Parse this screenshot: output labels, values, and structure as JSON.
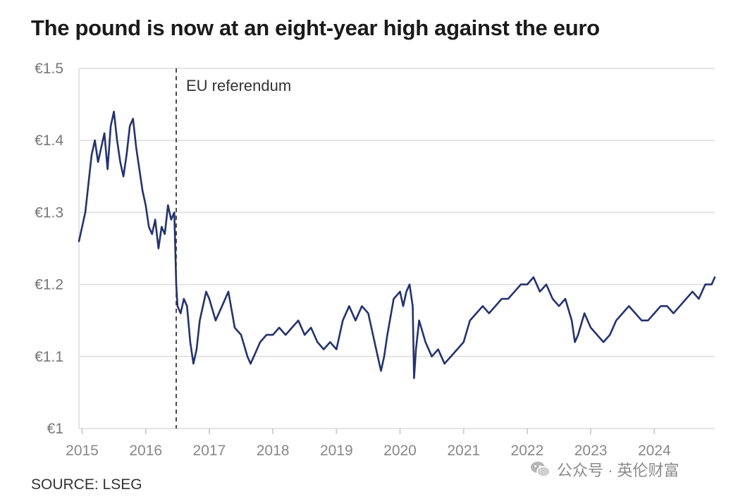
{
  "chart_data": {
    "type": "line",
    "title": "The pound is now at an eight-year high against the euro",
    "xlabel": "",
    "ylabel": "",
    "xlim": [
      2014.95,
      2024.95
    ],
    "ylim": [
      1.0,
      1.5
    ],
    "y_ticks": [
      {
        "value": 1.5,
        "label": "€1.5"
      },
      {
        "value": 1.4,
        "label": "€1.4"
      },
      {
        "value": 1.3,
        "label": "€1.3"
      },
      {
        "value": 1.2,
        "label": "€1.2"
      },
      {
        "value": 1.1,
        "label": "€1.1"
      },
      {
        "value": 1.0,
        "label": "€1"
      }
    ],
    "x_ticks": [
      {
        "value": 2015,
        "label": "2015"
      },
      {
        "value": 2016,
        "label": "2016"
      },
      {
        "value": 2017,
        "label": "2017"
      },
      {
        "value": 2018,
        "label": "2018"
      },
      {
        "value": 2019,
        "label": "2019"
      },
      {
        "value": 2020,
        "label": "2020"
      },
      {
        "value": 2021,
        "label": "2021"
      },
      {
        "value": 2022,
        "label": "2022"
      },
      {
        "value": 2023,
        "label": "2023"
      },
      {
        "value": 2024,
        "label": "2024"
      }
    ],
    "grid": true,
    "series_color": "#23336e",
    "annotation": {
      "x": 2016.48,
      "label": "EU referendum"
    },
    "series": [
      {
        "x": [
          2014.95,
          2015.0,
          2015.05,
          2015.1,
          2015.15,
          2015.2,
          2015.25,
          2015.3,
          2015.35,
          2015.4,
          2015.45,
          2015.5,
          2015.55,
          2015.6,
          2015.65,
          2015.7,
          2015.75,
          2015.8,
          2015.85,
          2015.9,
          2015.95,
          2016.0,
          2016.05,
          2016.1,
          2016.15,
          2016.2,
          2016.25,
          2016.3,
          2016.35,
          2016.4,
          2016.45,
          2016.48,
          2016.5,
          2016.55,
          2016.6,
          2016.65,
          2016.7,
          2016.75,
          2016.8,
          2016.85,
          2016.9,
          2016.95,
          2017.0,
          2017.1,
          2017.2,
          2017.3,
          2017.4,
          2017.5,
          2017.6,
          2017.65,
          2017.7,
          2017.8,
          2017.9,
          2018.0,
          2018.1,
          2018.2,
          2018.3,
          2018.4,
          2018.5,
          2018.6,
          2018.7,
          2018.8,
          2018.9,
          2019.0,
          2019.1,
          2019.2,
          2019.3,
          2019.4,
          2019.5,
          2019.6,
          2019.65,
          2019.7,
          2019.75,
          2019.8,
          2019.9,
          2020.0,
          2020.05,
          2020.1,
          2020.15,
          2020.2,
          2020.22,
          2020.25,
          2020.3,
          2020.4,
          2020.5,
          2020.6,
          2020.7,
          2020.8,
          2020.9,
          2021.0,
          2021.1,
          2021.2,
          2021.3,
          2021.4,
          2021.5,
          2021.6,
          2021.7,
          2021.8,
          2021.9,
          2022.0,
          2022.1,
          2022.2,
          2022.3,
          2022.4,
          2022.5,
          2022.6,
          2022.7,
          2022.75,
          2022.8,
          2022.9,
          2023.0,
          2023.1,
          2023.2,
          2023.3,
          2023.4,
          2023.5,
          2023.6,
          2023.7,
          2023.8,
          2023.9,
          2024.0,
          2024.1,
          2024.2,
          2024.3,
          2024.4,
          2024.5,
          2024.6,
          2024.7,
          2024.8,
          2024.9,
          2024.95
        ],
        "values": [
          1.26,
          1.28,
          1.3,
          1.34,
          1.38,
          1.4,
          1.37,
          1.39,
          1.41,
          1.36,
          1.42,
          1.44,
          1.4,
          1.37,
          1.35,
          1.38,
          1.42,
          1.43,
          1.39,
          1.36,
          1.33,
          1.31,
          1.28,
          1.27,
          1.29,
          1.25,
          1.28,
          1.27,
          1.31,
          1.29,
          1.3,
          1.2,
          1.17,
          1.16,
          1.18,
          1.17,
          1.12,
          1.09,
          1.11,
          1.15,
          1.17,
          1.19,
          1.18,
          1.15,
          1.17,
          1.19,
          1.14,
          1.13,
          1.1,
          1.09,
          1.1,
          1.12,
          1.13,
          1.13,
          1.14,
          1.13,
          1.14,
          1.15,
          1.13,
          1.14,
          1.12,
          1.11,
          1.12,
          1.11,
          1.15,
          1.17,
          1.15,
          1.17,
          1.16,
          1.12,
          1.1,
          1.08,
          1.1,
          1.13,
          1.18,
          1.19,
          1.17,
          1.19,
          1.2,
          1.17,
          1.07,
          1.11,
          1.15,
          1.12,
          1.1,
          1.11,
          1.09,
          1.1,
          1.11,
          1.12,
          1.15,
          1.16,
          1.17,
          1.16,
          1.17,
          1.18,
          1.18,
          1.19,
          1.2,
          1.2,
          1.21,
          1.19,
          1.2,
          1.18,
          1.17,
          1.18,
          1.15,
          1.12,
          1.13,
          1.16,
          1.14,
          1.13,
          1.12,
          1.13,
          1.15,
          1.16,
          1.17,
          1.16,
          1.15,
          1.15,
          1.16,
          1.17,
          1.17,
          1.16,
          1.17,
          1.18,
          1.19,
          1.18,
          1.2,
          1.2,
          1.21
        ]
      }
    ]
  },
  "source": "SOURCE: LSEG",
  "watermark": "公众号 · 英伦财富"
}
